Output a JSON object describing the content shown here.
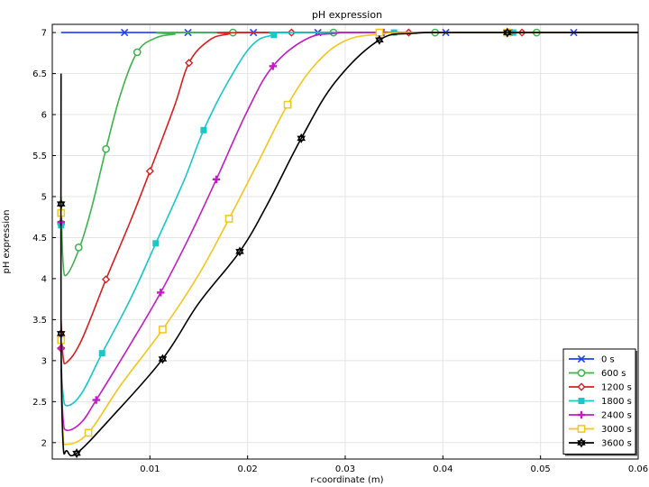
{
  "chart_data": {
    "type": "line",
    "title": "pH expression",
    "xlabel": "r-coordinate (m)",
    "ylabel": "pH expression",
    "xlim": [
      0,
      0.06
    ],
    "ylim": [
      1.8,
      7.1
    ],
    "xticks": [
      "0.01",
      "0.02",
      "0.03",
      "0.04",
      "0.05",
      "0.06"
    ],
    "yticks": [
      "2",
      "2.5",
      "3",
      "3.5",
      "4",
      "4.5",
      "5",
      "5.5",
      "6",
      "6.5",
      "7"
    ],
    "grid": true,
    "legend_position": "bottom-right",
    "series": [
      {
        "name": "0 s",
        "color": "#1f3fff",
        "marker": "x",
        "points": [
          [
            0.0009,
            7.0
          ],
          [
            0.06,
            7.0
          ]
        ],
        "marker_points": [
          [
            0.0074,
            7.0
          ],
          [
            0.0139,
            7.0
          ],
          [
            0.0206,
            7.0
          ],
          [
            0.0272,
            7.0
          ],
          [
            0.0337,
            7.0
          ],
          [
            0.0403,
            7.0
          ],
          [
            0.0468,
            7.0
          ],
          [
            0.0534,
            7.0
          ]
        ]
      },
      {
        "name": "600 s",
        "color": "#3cb44b",
        "marker": "circle",
        "points": [
          [
            0.0009,
            5.0
          ],
          [
            0.0011,
            4.2
          ],
          [
            0.0015,
            4.05
          ],
          [
            0.0028,
            4.38
          ],
          [
            0.004,
            4.85
          ],
          [
            0.0055,
            5.58
          ],
          [
            0.007,
            6.25
          ],
          [
            0.0087,
            6.76
          ],
          [
            0.0105,
            6.93
          ],
          [
            0.0125,
            6.98
          ],
          [
            0.015,
            7.0
          ],
          [
            0.06,
            7.0
          ]
        ],
        "marker_points": [
          [
            0.0009,
            4.67
          ],
          [
            0.0027,
            4.38
          ],
          [
            0.0055,
            5.58
          ],
          [
            0.0087,
            6.76
          ],
          [
            0.0185,
            7.0
          ],
          [
            0.0288,
            7.0
          ],
          [
            0.0392,
            7.0
          ],
          [
            0.0496,
            7.0
          ]
        ]
      },
      {
        "name": "1200 s",
        "color": "#d62020",
        "marker": "diamond",
        "points": [
          [
            0.0009,
            3.5
          ],
          [
            0.0011,
            3.05
          ],
          [
            0.0015,
            2.98
          ],
          [
            0.003,
            3.25
          ],
          [
            0.0055,
            3.99
          ],
          [
            0.008,
            4.7
          ],
          [
            0.01,
            5.31
          ],
          [
            0.0125,
            6.1
          ],
          [
            0.014,
            6.63
          ],
          [
            0.016,
            6.9
          ],
          [
            0.018,
            6.98
          ],
          [
            0.021,
            7.0
          ],
          [
            0.06,
            7.0
          ]
        ],
        "marker_points": [
          [
            0.0009,
            3.15
          ],
          [
            0.0055,
            3.99
          ],
          [
            0.01,
            5.31
          ],
          [
            0.014,
            6.63
          ],
          [
            0.0245,
            7.0
          ],
          [
            0.0365,
            7.0
          ],
          [
            0.0481,
            7.0
          ]
        ]
      },
      {
        "name": "1800 s",
        "color": "#17c8c8",
        "marker": "square-filled",
        "points": [
          [
            0.0009,
            3.0
          ],
          [
            0.0011,
            2.6
          ],
          [
            0.0015,
            2.45
          ],
          [
            0.003,
            2.6
          ],
          [
            0.0051,
            3.09
          ],
          [
            0.008,
            3.75
          ],
          [
            0.0106,
            4.43
          ],
          [
            0.0135,
            5.2
          ],
          [
            0.0155,
            5.81
          ],
          [
            0.018,
            6.4
          ],
          [
            0.0205,
            6.85
          ],
          [
            0.0227,
            6.97
          ],
          [
            0.026,
            7.0
          ],
          [
            0.06,
            7.0
          ]
        ],
        "marker_points": [
          [
            0.0009,
            4.65
          ],
          [
            0.0051,
            3.09
          ],
          [
            0.0106,
            4.43
          ],
          [
            0.0155,
            5.81
          ],
          [
            0.0227,
            6.97
          ],
          [
            0.035,
            7.0
          ],
          [
            0.0472,
            7.0
          ]
        ]
      },
      {
        "name": "2400 s",
        "color": "#c41cc4",
        "marker": "plus",
        "points": [
          [
            0.0009,
            2.9
          ],
          [
            0.0011,
            2.3
          ],
          [
            0.0015,
            2.15
          ],
          [
            0.003,
            2.25
          ],
          [
            0.0045,
            2.52
          ],
          [
            0.008,
            3.2
          ],
          [
            0.0111,
            3.83
          ],
          [
            0.014,
            4.5
          ],
          [
            0.0168,
            5.21
          ],
          [
            0.02,
            6.05
          ],
          [
            0.0226,
            6.59
          ],
          [
            0.026,
            6.92
          ],
          [
            0.029,
            6.99
          ],
          [
            0.033,
            7.0
          ],
          [
            0.06,
            7.0
          ]
        ],
        "marker_points": [
          [
            0.0009,
            4.69
          ],
          [
            0.0009,
            3.15
          ],
          [
            0.0045,
            2.52
          ],
          [
            0.0111,
            3.83
          ],
          [
            0.0168,
            5.21
          ],
          [
            0.0226,
            6.59
          ],
          [
            0.0339,
            7.0
          ],
          [
            0.0468,
            7.0
          ]
        ]
      },
      {
        "name": "3000 s",
        "color": "#f5c518",
        "marker": "square",
        "points": [
          [
            0.0009,
            2.8
          ],
          [
            0.0011,
            2.1
          ],
          [
            0.0015,
            1.98
          ],
          [
            0.0037,
            2.12
          ],
          [
            0.007,
            2.7
          ],
          [
            0.0113,
            3.38
          ],
          [
            0.015,
            4.05
          ],
          [
            0.0181,
            4.73
          ],
          [
            0.021,
            5.4
          ],
          [
            0.0241,
            6.12
          ],
          [
            0.027,
            6.62
          ],
          [
            0.03,
            6.9
          ],
          [
            0.0335,
            6.98
          ],
          [
            0.038,
            7.0
          ],
          [
            0.06,
            7.0
          ]
        ],
        "marker_points": [
          [
            0.0009,
            4.8
          ],
          [
            0.0009,
            3.25
          ],
          [
            0.0037,
            2.12
          ],
          [
            0.0113,
            3.38
          ],
          [
            0.0181,
            4.73
          ],
          [
            0.0241,
            6.12
          ],
          [
            0.0335,
            7.0
          ],
          [
            0.0466,
            7.0
          ]
        ]
      },
      {
        "name": "3600 s",
        "color": "#000000",
        "marker": "star",
        "points": [
          [
            0.0009,
            6.5
          ],
          [
            0.0009,
            3.3
          ],
          [
            0.0011,
            2.0
          ],
          [
            0.0015,
            1.9
          ],
          [
            0.0025,
            1.87
          ],
          [
            0.006,
            2.3
          ],
          [
            0.0113,
            3.02
          ],
          [
            0.015,
            3.7
          ],
          [
            0.0192,
            4.33
          ],
          [
            0.022,
            4.9
          ],
          [
            0.0255,
            5.71
          ],
          [
            0.029,
            6.4
          ],
          [
            0.0335,
            6.91
          ],
          [
            0.037,
            6.99
          ],
          [
            0.042,
            7.0
          ],
          [
            0.06,
            7.0
          ]
        ],
        "marker_points": [
          [
            0.0009,
            4.91
          ],
          [
            0.0009,
            3.33
          ],
          [
            0.0025,
            1.87
          ],
          [
            0.0113,
            3.02
          ],
          [
            0.0192,
            4.33
          ],
          [
            0.0255,
            5.71
          ],
          [
            0.0335,
            6.91
          ],
          [
            0.0466,
            7.0
          ]
        ]
      }
    ]
  }
}
